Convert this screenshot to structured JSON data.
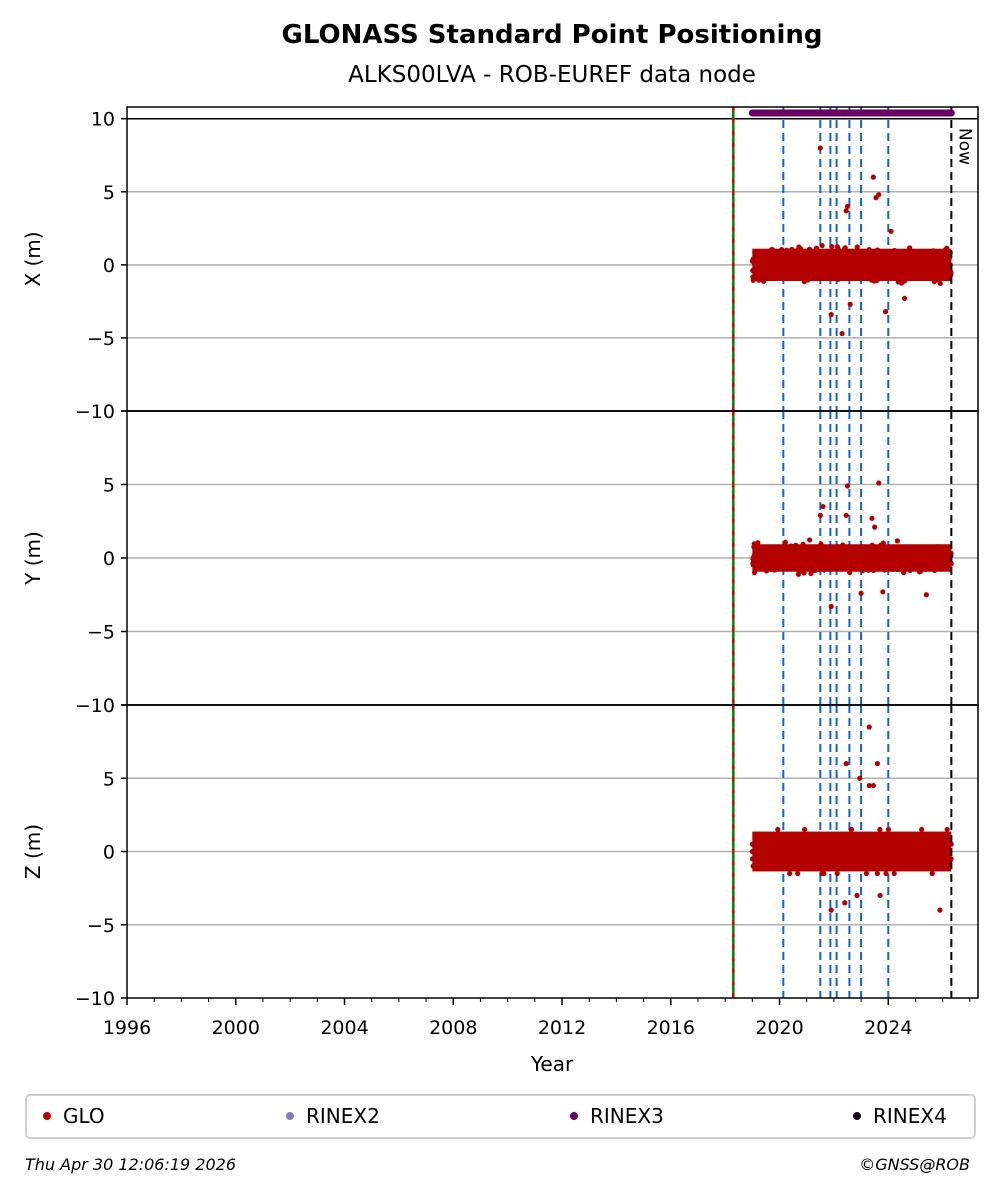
{
  "chart_data": {
    "type": "scatter",
    "title": "GLONASS Standard Point Positioning",
    "subtitle": "ALKS00LVA - ROB-EUREF data node",
    "xlabel": "Year",
    "xlim": [
      1996,
      2027.3
    ],
    "x_ticks": [
      "1996",
      "2000",
      "2004",
      "2008",
      "2012",
      "2016",
      "2020",
      "2024"
    ],
    "y_ticks": [
      "10",
      "5",
      "0",
      "−5",
      "−10"
    ],
    "grid": true,
    "panels": [
      {
        "ylabel": "X (m)",
        "ylim": [
          -10,
          10.8
        ],
        "spread": 1.3,
        "outliers": [
          [
            2021.5,
            8.0
          ],
          [
            2022.45,
            3.7
          ],
          [
            2022.5,
            4.0
          ],
          [
            2023.45,
            6.0
          ],
          [
            2023.55,
            4.6
          ],
          [
            2023.65,
            4.8
          ],
          [
            2024.1,
            2.3
          ],
          [
            2023.9,
            -3.2
          ],
          [
            2022.3,
            -4.7
          ],
          [
            2021.9,
            -3.4
          ],
          [
            2022.6,
            -2.7
          ],
          [
            2024.6,
            -2.3
          ]
        ]
      },
      {
        "ylabel": "Y (m)",
        "ylim": [
          -10,
          10
        ],
        "spread": 1.1,
        "outliers": [
          [
            2021.6,
            3.5
          ],
          [
            2021.5,
            2.9
          ],
          [
            2022.5,
            4.9
          ],
          [
            2023.65,
            5.1
          ],
          [
            2022.45,
            2.9
          ],
          [
            2023.4,
            2.7
          ],
          [
            2023.5,
            2.1
          ],
          [
            2021.9,
            -3.3
          ],
          [
            2023.0,
            -2.4
          ],
          [
            2023.8,
            -2.3
          ],
          [
            2025.4,
            -2.5
          ]
        ]
      },
      {
        "ylabel": "Z (m)",
        "ylim": [
          -10,
          10
        ],
        "spread": 1.6,
        "quantized": 0.5,
        "outliers": [
          [
            2023.3,
            8.5
          ],
          [
            2023.6,
            6.0
          ],
          [
            2022.45,
            6.0
          ],
          [
            2022.95,
            5.0
          ],
          [
            2023.3,
            4.5
          ],
          [
            2023.45,
            4.5
          ],
          [
            2021.9,
            -4.0
          ],
          [
            2022.4,
            -3.5
          ],
          [
            2023.7,
            -3.0
          ],
          [
            2025.9,
            -4.0
          ],
          [
            2022.85,
            -3.0
          ]
        ]
      }
    ],
    "series": [
      {
        "name": "GLO",
        "color": "#b30000",
        "x_range": [
          2019.0,
          2026.32
        ],
        "mean": 0
      }
    ],
    "rinex3_bar": {
      "x_range": [
        2019.0,
        2026.32
      ],
      "color": "#6a0063"
    },
    "reference_line": {
      "x": 2018.3
    },
    "event_lines": [
      2020.14,
      2021.5,
      2021.87,
      2022.1,
      2022.57,
      2023.0,
      2024.0
    ],
    "now_line": {
      "x": 2026.32,
      "label": "Now"
    },
    "legend": {
      "placement": "bottom",
      "entries": [
        {
          "name": "GLO",
          "color": "#b30000"
        },
        {
          "name": "RINEX2",
          "color": "#7f7fbf"
        },
        {
          "name": "RINEX3",
          "color": "#6a0063"
        },
        {
          "name": "RINEX4",
          "color": "#1a0018"
        }
      ]
    }
  },
  "footer": {
    "timestamp": "Thu Apr 30 12:06:19 2026",
    "copyright": "©GNSS@ROB"
  }
}
